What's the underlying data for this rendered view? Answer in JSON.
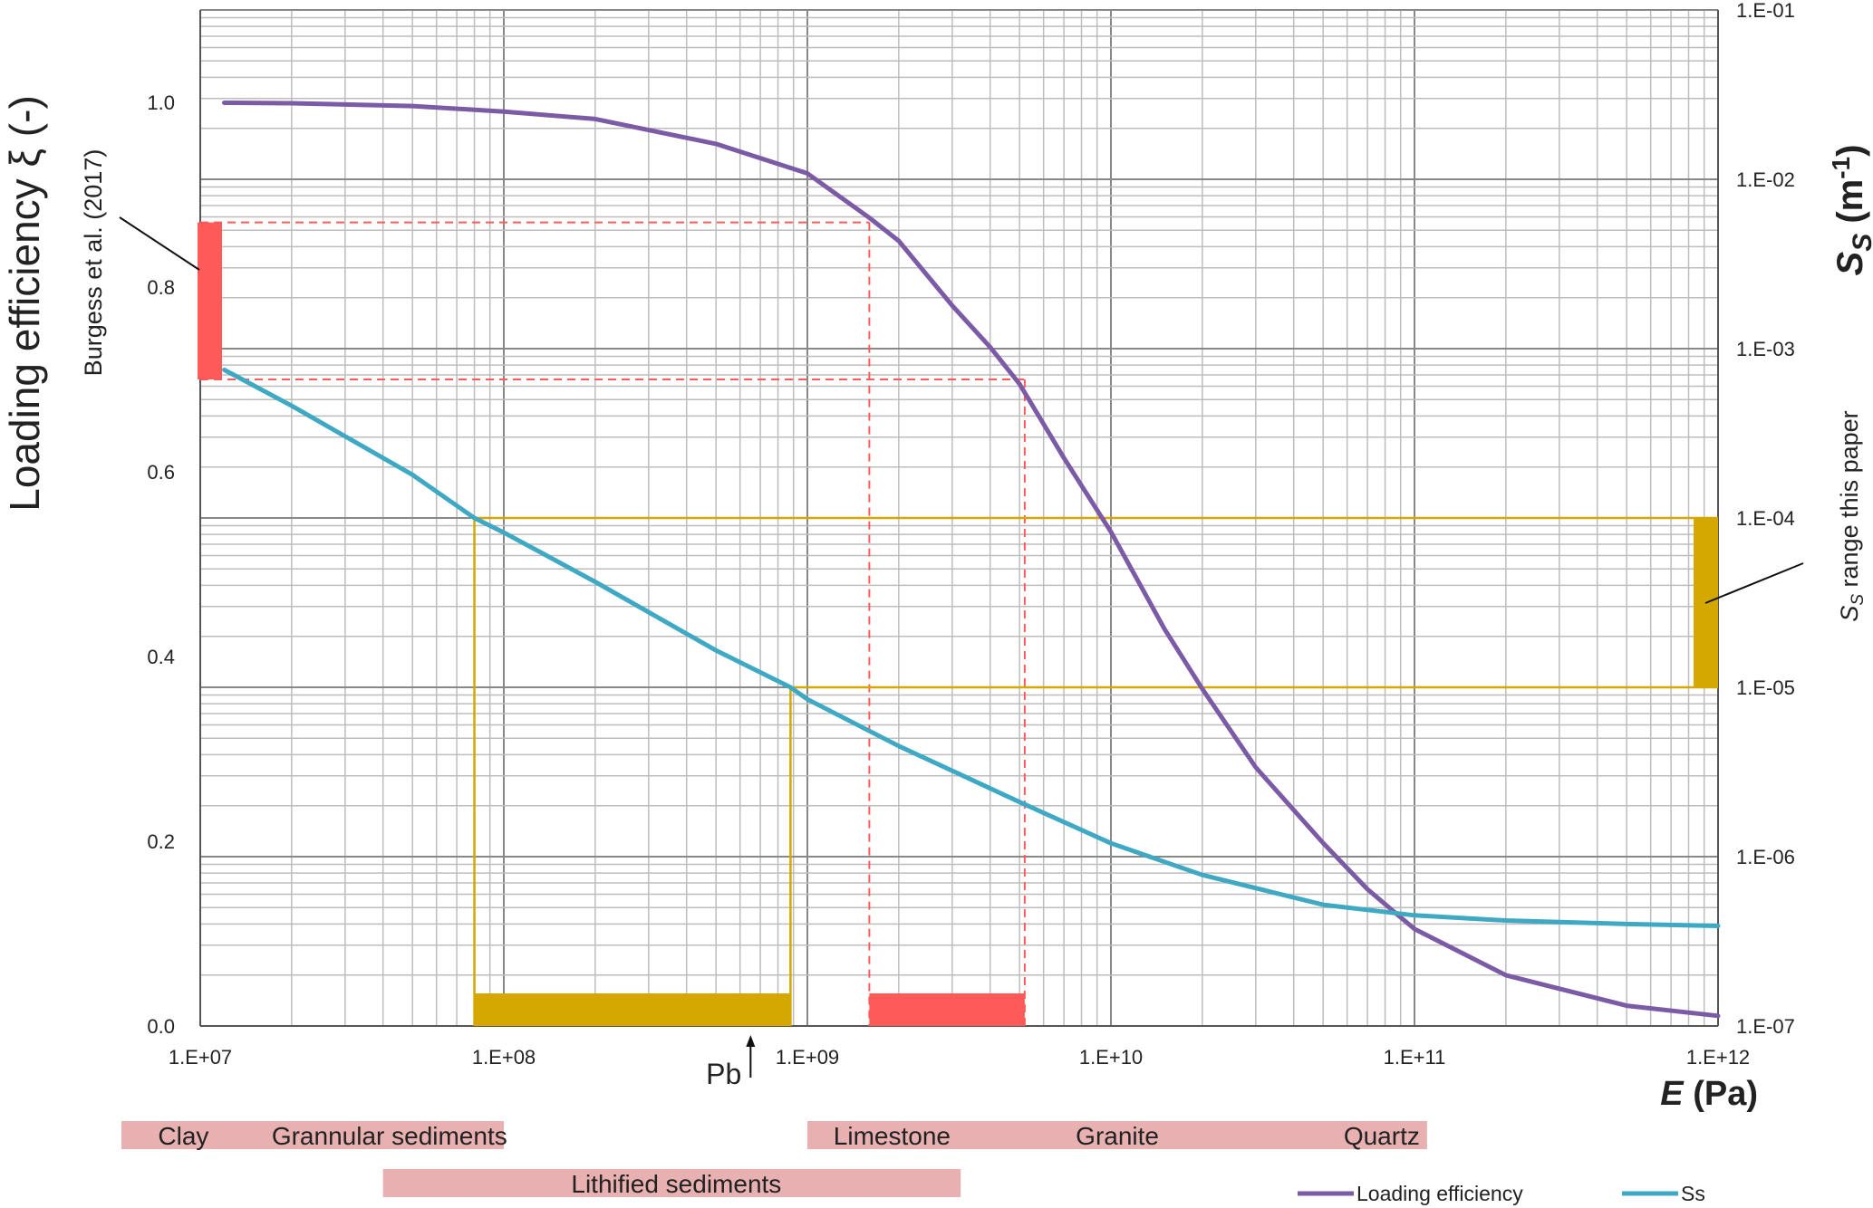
{
  "chart_data": {
    "type": "line",
    "x_axis": {
      "scale": "log",
      "range": [
        10000000.0,
        1000000000000.0
      ],
      "label_prefix": "E",
      "label_unit": " (Pa)",
      "ticks": [
        {
          "value": 10000000.0,
          "label": "1.E+07"
        },
        {
          "value": 100000000.0,
          "label": "1.E+08"
        },
        {
          "value": 1000000000.0,
          "label": "1.E+09"
        },
        {
          "value": 10000000000.0,
          "label": "1.E+10"
        },
        {
          "value": 100000000000.0,
          "label": "1.E+11"
        },
        {
          "value": 1000000000000.0,
          "label": "1.E+12"
        }
      ]
    },
    "y_left": {
      "label": "Loading efficiency ξ (-)",
      "range": [
        0,
        1.1
      ],
      "ticks": [
        {
          "value": 0.0,
          "label": "0.0"
        },
        {
          "value": 0.2,
          "label": "0.2"
        },
        {
          "value": 0.4,
          "label": "0.4"
        },
        {
          "value": 0.6,
          "label": "0.6"
        },
        {
          "value": 0.8,
          "label": "0.8"
        },
        {
          "value": 1.0,
          "label": "1.0"
        }
      ]
    },
    "y_right": {
      "scale": "log",
      "label_main": "S",
      "label_sub": "S",
      "label_unit": " (m",
      "label_exp": "-1",
      "label_close": ")",
      "range": [
        1e-07,
        0.1
      ],
      "ticks": [
        {
          "value": 1e-07,
          "label": "1.E-07"
        },
        {
          "value": 1e-06,
          "label": "1.E-06"
        },
        {
          "value": 1e-05,
          "label": "1.E-05"
        },
        {
          "value": 0.0001,
          "label": "1.E-04"
        },
        {
          "value": 0.001,
          "label": "1.E-03"
        },
        {
          "value": 0.01,
          "label": "1.E-02"
        },
        {
          "value": 0.1,
          "label": "1.E-01"
        }
      ]
    },
    "grid": true,
    "series": [
      {
        "name": "Loading efficiency",
        "axis": "left",
        "color": "#7b5aa6",
        "points": [
          [
            12000000.0,
            0.9995
          ],
          [
            20000000.0,
            0.999
          ],
          [
            50000000.0,
            0.996
          ],
          [
            100000000.0,
            0.99
          ],
          [
            200000000.0,
            0.982
          ],
          [
            500000000.0,
            0.955
          ],
          [
            1000000000.0,
            0.923
          ],
          [
            1600000000.0,
            0.875
          ],
          [
            2000000000.0,
            0.85
          ],
          [
            3000000000.0,
            0.78
          ],
          [
            4000000000.0,
            0.735
          ],
          [
            5000000000.0,
            0.695
          ],
          [
            7000000000.0,
            0.615
          ],
          [
            10000000000.0,
            0.535
          ],
          [
            15000000000.0,
            0.43
          ],
          [
            20000000000.0,
            0.365
          ],
          [
            30000000000.0,
            0.28
          ],
          [
            50000000000.0,
            0.198
          ],
          [
            70000000000.0,
            0.148
          ],
          [
            100000000000.0,
            0.105
          ],
          [
            200000000000.0,
            0.055
          ],
          [
            500000000000.0,
            0.022
          ],
          [
            1000000000000.0,
            0.011
          ]
        ]
      },
      {
        "name": "Ss",
        "axis": "right",
        "color": "#3fa9c4",
        "points": [
          [
            12000000.0,
            0.00075
          ],
          [
            20000000.0,
            0.00046
          ],
          [
            50000000.0,
            0.00018
          ],
          [
            80000000.0,
            0.0001
          ],
          [
            100000000.0,
            8.2e-05
          ],
          [
            200000000.0,
            4.2e-05
          ],
          [
            500000000.0,
            1.65e-05
          ],
          [
            880000000.0,
            1e-05
          ],
          [
            1000000000.0,
            8.5e-06
          ],
          [
            2000000000.0,
            4.5e-06
          ],
          [
            5000000000.0,
            2.1e-06
          ],
          [
            10000000000.0,
            1.2e-06
          ],
          [
            20000000000.0,
            7.8e-07
          ],
          [
            50000000000.0,
            5.2e-07
          ],
          [
            100000000000.0,
            4.5e-07
          ],
          [
            200000000000.0,
            4.2e-07
          ],
          [
            500000000000.0,
            4e-07
          ],
          [
            1000000000000.0,
            3.9e-07
          ]
        ]
      }
    ],
    "annotations": {
      "burgess_label": "Burgess et al. (2017)",
      "burgess_range": [
        0.7,
        0.87
      ],
      "burgess_e_range": [
        1600000000.0,
        5200000000.0
      ],
      "ss_range_label_sub": "S",
      "ss_range_label_rest": " range this paper",
      "ss_range": [
        1e-05,
        0.0001
      ],
      "ss_e_range": [
        80000000.0,
        880000000.0
      ],
      "pb_label": "Pb",
      "pb_value": 650000000.0,
      "red_color": "#ff5a5a",
      "gold_color": "#d4a800"
    },
    "material_bands": [
      {
        "e_range": [
          5500000.0,
          100000000.0
        ],
        "row": 0,
        "labels": [
          {
            "text": "Clay",
            "at": 8800000.0
          },
          {
            "text": "Grannular sediments",
            "at": 42000000.0
          }
        ]
      },
      {
        "e_range": [
          1000000000.0,
          110000000000.0
        ],
        "row": 0,
        "labels": [
          {
            "text": "Limestone",
            "at": 1900000000.0
          },
          {
            "text": "Granite",
            "at": 10500000000.0
          },
          {
            "text": "Quartz",
            "at": 78000000000.0
          }
        ]
      },
      {
        "e_range": [
          40000000.0,
          3200000000.0
        ],
        "row": 1,
        "labels": [
          {
            "text": "Lithified sediments",
            "at": 370000000.0
          }
        ]
      }
    ],
    "band_color": "#e8b0b0",
    "legend": {
      "placement": "bottom-right",
      "items": [
        {
          "label": "Loading efficiency",
          "color": "#7b5aa6"
        },
        {
          "label": "Ss",
          "color": "#3fa9c4"
        }
      ]
    }
  }
}
